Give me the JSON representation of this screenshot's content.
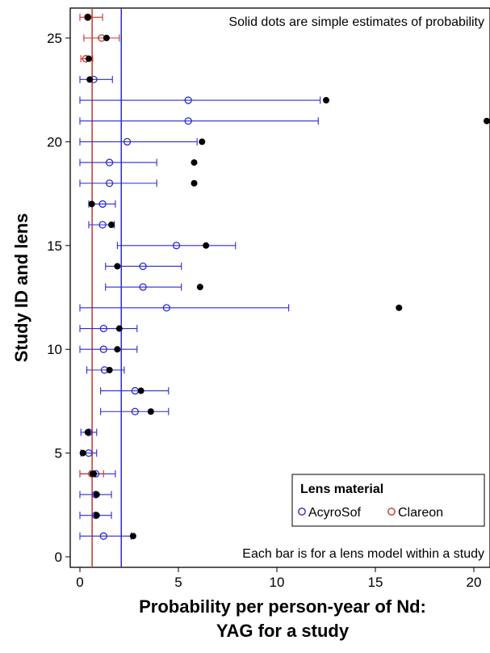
{
  "chart_data": {
    "type": "scatter",
    "xlabel_lines": [
      "Probability per person-year of Nd:",
      "YAG for a study"
    ],
    "ylabel": "Study ID and lens",
    "xlim": [
      -0.5,
      21
    ],
    "ylim": [
      -0.5,
      26.5
    ],
    "x_ticks": [
      0,
      5,
      10,
      15,
      20
    ],
    "y_ticks": [
      0,
      5,
      10,
      15,
      20,
      25
    ],
    "grid": false,
    "annotations": {
      "top": "Solid dots are simple estimates of probability",
      "bottom": "Each bar is for a lens model within a study"
    },
    "reference_lines": [
      {
        "x": 0.62,
        "color": "#c0392b"
      },
      {
        "x": 2.1,
        "color": "#2a2ad6"
      }
    ],
    "legend": {
      "title": "Lens material",
      "position": "bottom-right",
      "entries": [
        {
          "label": "AcyroSof",
          "color": "#2a2ad6"
        },
        {
          "label": "Clareon",
          "color": "#c0392b"
        }
      ]
    },
    "series": [
      {
        "name": "AcyroSof",
        "color": "#2a2ad6",
        "points": [
          {
            "y": 23,
            "est": 0.7,
            "lo": 0.0,
            "hi": 1.65,
            "simple": 0.5
          },
          {
            "y": 22,
            "est": 5.5,
            "lo": 0.0,
            "hi": 12.2,
            "simple": 12.5
          },
          {
            "y": 21,
            "est": 5.5,
            "lo": 0.0,
            "hi": 12.1,
            "simple": 21.0
          },
          {
            "y": 20,
            "est": 2.4,
            "lo": 0.0,
            "hi": 5.95,
            "simple": 6.2
          },
          {
            "y": 19,
            "est": 1.5,
            "lo": 0.0,
            "hi": 3.9,
            "simple": 5.8
          },
          {
            "y": 18,
            "est": 1.5,
            "lo": 0.0,
            "hi": 3.9,
            "simple": 5.8
          },
          {
            "y": 17,
            "est": 1.15,
            "lo": 0.45,
            "hi": 1.8,
            "simple": 0.6
          },
          {
            "y": 16,
            "est": 1.15,
            "lo": 0.45,
            "hi": 1.75,
            "simple": 1.6
          },
          {
            "y": 15,
            "est": 4.9,
            "lo": 1.9,
            "hi": 7.9,
            "simple": 6.4
          },
          {
            "y": 14,
            "est": 3.2,
            "lo": 1.3,
            "hi": 5.15,
            "simple": 1.9
          },
          {
            "y": 13,
            "est": 3.2,
            "lo": 1.3,
            "hi": 5.15,
            "simple": 6.1
          },
          {
            "y": 12,
            "est": 4.4,
            "lo": 0.0,
            "hi": 10.6,
            "simple": 16.2
          },
          {
            "y": 11,
            "est": 1.2,
            "lo": 0.0,
            "hi": 2.9,
            "simple": 2.0
          },
          {
            "y": 10,
            "est": 1.2,
            "lo": 0.0,
            "hi": 2.9,
            "simple": 1.9
          },
          {
            "y": 9,
            "est": 1.25,
            "lo": 0.35,
            "hi": 2.25,
            "simple": 1.5
          },
          {
            "y": 8,
            "est": 2.8,
            "lo": 1.05,
            "hi": 4.5,
            "simple": 3.1
          },
          {
            "y": 7,
            "est": 2.8,
            "lo": 1.05,
            "hi": 4.5,
            "simple": 3.6
          },
          {
            "y": 6,
            "est": 0.45,
            "lo": 0.05,
            "hi": 0.85,
            "simple": 0.4
          },
          {
            "y": 5,
            "est": 0.45,
            "lo": 0.05,
            "hi": 0.85,
            "simple": 0.15
          },
          {
            "y": 4,
            "est": 0.8,
            "lo": 0.0,
            "hi": 1.8,
            "simple": 0.65
          },
          {
            "y": 3,
            "est": 0.8,
            "lo": 0.0,
            "hi": 1.6,
            "simple": 0.85
          },
          {
            "y": 2,
            "est": 0.8,
            "lo": 0.0,
            "hi": 1.6,
            "simple": 0.85
          },
          {
            "y": 1,
            "est": 1.2,
            "lo": 0.0,
            "hi": 2.6,
            "simple": 2.7
          }
        ]
      },
      {
        "name": "Clareon",
        "color": "#c0392b",
        "points": [
          {
            "y": 26,
            "est": 0.4,
            "lo": 0.0,
            "hi": 1.15,
            "simple": 0.4
          },
          {
            "y": 25,
            "est": 1.1,
            "lo": 0.2,
            "hi": 2.0,
            "simple": 1.35
          },
          {
            "y": 24,
            "est": 0.3,
            "lo": 0.05,
            "hi": 0.65,
            "simple": 0.45
          },
          {
            "y": 4,
            "est": 0.6,
            "lo": 0.0,
            "hi": 1.2,
            "simple": 0.7
          }
        ]
      }
    ]
  }
}
